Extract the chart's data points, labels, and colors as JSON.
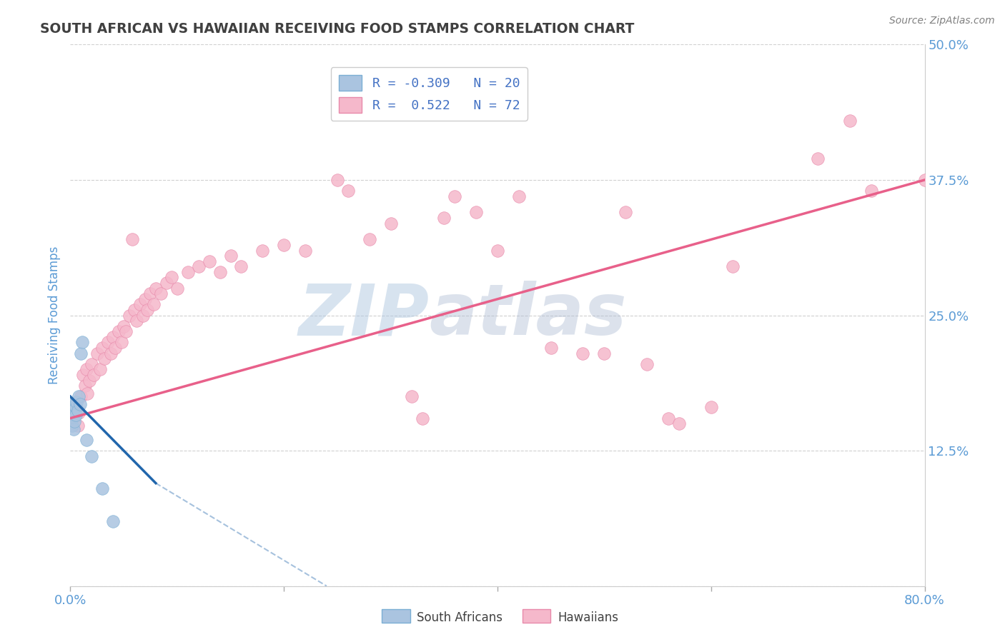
{
  "title": "SOUTH AFRICAN VS HAWAIIAN RECEIVING FOOD STAMPS CORRELATION CHART",
  "source": "Source: ZipAtlas.com",
  "ylabel": "Receiving Food Stamps",
  "xlim": [
    0.0,
    0.8
  ],
  "ylim": [
    0.0,
    0.5
  ],
  "xticks": [
    0.0,
    0.2,
    0.4,
    0.6,
    0.8
  ],
  "xtick_labels": [
    "0.0%",
    "",
    "",
    "",
    "80.0%"
  ],
  "yticks": [
    0.0,
    0.125,
    0.25,
    0.375,
    0.5
  ],
  "ytick_labels": [
    "",
    "12.5%",
    "25.0%",
    "37.5%",
    "50.0%"
  ],
  "legend_r1": "R = -0.309   N = 20",
  "legend_r2": "R =  0.522   N = 72",
  "south_african_color": "#aac4e0",
  "south_african_edge": "#7bafd4",
  "hawaiian_color": "#f5b8cb",
  "hawaiian_edge": "#e88aab",
  "south_african_line_color": "#2166ac",
  "hawaiian_line_color": "#e8608a",
  "watermark": "ZIP",
  "watermark2": "atlas",
  "watermark_color1": "#b0c8e0",
  "watermark_color2": "#a8b8d0",
  "background_color": "#ffffff",
  "grid_color": "#d0d0d0",
  "title_color": "#404040",
  "title_fontsize": 13.5,
  "axis_label_color": "#5b9bd5",
  "tick_label_color": "#5b9bd5",
  "legend_text_color": "#4472c4",
  "source_color": "#808080",
  "south_african_points": [
    [
      0.001,
      0.168
    ],
    [
      0.001,
      0.155
    ],
    [
      0.002,
      0.16
    ],
    [
      0.002,
      0.148
    ],
    [
      0.003,
      0.162
    ],
    [
      0.003,
      0.145
    ],
    [
      0.004,
      0.158
    ],
    [
      0.004,
      0.152
    ],
    [
      0.005,
      0.165
    ],
    [
      0.005,
      0.158
    ],
    [
      0.006,
      0.17
    ],
    [
      0.007,
      0.162
    ],
    [
      0.008,
      0.175
    ],
    [
      0.009,
      0.168
    ],
    [
      0.01,
      0.215
    ],
    [
      0.011,
      0.225
    ],
    [
      0.015,
      0.135
    ],
    [
      0.02,
      0.12
    ],
    [
      0.03,
      0.09
    ],
    [
      0.04,
      0.06
    ]
  ],
  "hawaiian_points": [
    [
      0.003,
      0.155
    ],
    [
      0.005,
      0.165
    ],
    [
      0.007,
      0.148
    ],
    [
      0.008,
      0.16
    ],
    [
      0.01,
      0.175
    ],
    [
      0.012,
      0.195
    ],
    [
      0.014,
      0.185
    ],
    [
      0.015,
      0.2
    ],
    [
      0.016,
      0.178
    ],
    [
      0.018,
      0.19
    ],
    [
      0.02,
      0.205
    ],
    [
      0.022,
      0.195
    ],
    [
      0.025,
      0.215
    ],
    [
      0.028,
      0.2
    ],
    [
      0.03,
      0.22
    ],
    [
      0.032,
      0.21
    ],
    [
      0.035,
      0.225
    ],
    [
      0.038,
      0.215
    ],
    [
      0.04,
      0.23
    ],
    [
      0.042,
      0.22
    ],
    [
      0.045,
      0.235
    ],
    [
      0.048,
      0.225
    ],
    [
      0.05,
      0.24
    ],
    [
      0.052,
      0.235
    ],
    [
      0.055,
      0.25
    ],
    [
      0.058,
      0.32
    ],
    [
      0.06,
      0.255
    ],
    [
      0.062,
      0.245
    ],
    [
      0.065,
      0.26
    ],
    [
      0.068,
      0.25
    ],
    [
      0.07,
      0.265
    ],
    [
      0.072,
      0.255
    ],
    [
      0.075,
      0.27
    ],
    [
      0.078,
      0.26
    ],
    [
      0.08,
      0.275
    ],
    [
      0.085,
      0.27
    ],
    [
      0.09,
      0.28
    ],
    [
      0.095,
      0.285
    ],
    [
      0.1,
      0.275
    ],
    [
      0.11,
      0.29
    ],
    [
      0.12,
      0.295
    ],
    [
      0.13,
      0.3
    ],
    [
      0.14,
      0.29
    ],
    [
      0.15,
      0.305
    ],
    [
      0.16,
      0.295
    ],
    [
      0.18,
      0.31
    ],
    [
      0.2,
      0.315
    ],
    [
      0.22,
      0.31
    ],
    [
      0.25,
      0.375
    ],
    [
      0.26,
      0.365
    ],
    [
      0.28,
      0.32
    ],
    [
      0.3,
      0.335
    ],
    [
      0.32,
      0.175
    ],
    [
      0.33,
      0.155
    ],
    [
      0.35,
      0.34
    ],
    [
      0.36,
      0.36
    ],
    [
      0.38,
      0.345
    ],
    [
      0.4,
      0.31
    ],
    [
      0.42,
      0.36
    ],
    [
      0.45,
      0.22
    ],
    [
      0.48,
      0.215
    ],
    [
      0.5,
      0.215
    ],
    [
      0.52,
      0.345
    ],
    [
      0.54,
      0.205
    ],
    [
      0.56,
      0.155
    ],
    [
      0.57,
      0.15
    ],
    [
      0.6,
      0.165
    ],
    [
      0.62,
      0.295
    ],
    [
      0.7,
      0.395
    ],
    [
      0.73,
      0.43
    ],
    [
      0.75,
      0.365
    ],
    [
      0.8,
      0.375
    ]
  ],
  "sa_trend": {
    "x_start": 0.0,
    "x_end": 0.08,
    "y_start": 0.175,
    "y_end": 0.095
  },
  "sa_trend_dash": {
    "x_start": 0.08,
    "x_end": 0.24,
    "y_start": 0.095,
    "y_end": 0.0
  },
  "haw_trend": {
    "x_start": 0.0,
    "x_end": 0.8,
    "y_start": 0.155,
    "y_end": 0.375
  }
}
